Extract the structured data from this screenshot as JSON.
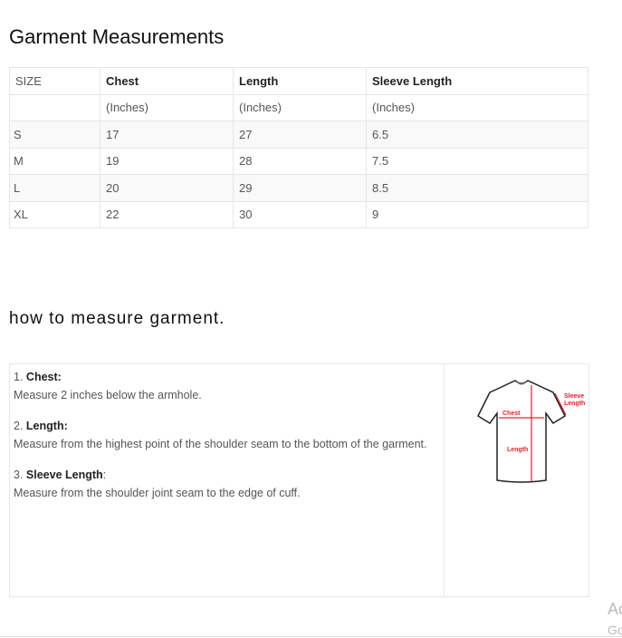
{
  "title": "Garment Measurements",
  "table": {
    "headers": [
      "SIZE",
      "Chest",
      "Length",
      "Sleeve Length"
    ],
    "rows": [
      [
        "",
        "(Inches)",
        "(Inches)",
        "(Inches)"
      ],
      [
        "S",
        "17",
        "27",
        "6.5"
      ],
      [
        "M",
        "19",
        "28",
        "7.5"
      ],
      [
        "L",
        "20",
        "29",
        "8.5"
      ],
      [
        "XL",
        "22",
        "30",
        "9"
      ]
    ]
  },
  "how": {
    "title": "how to measure garment.",
    "items": [
      {
        "num": "1.",
        "label": "Chest:",
        "text": "Measure 2 inches below the armhole."
      },
      {
        "num": "2.",
        "label": "Length:",
        "text": "Measure from the highest point of the shoulder seam to the bottom of the garment."
      },
      {
        "num": "3.",
        "label": "Sleeve Length",
        "suffix": ":",
        "text": "Measure from the shoulder joint seam to the edge of cuff."
      }
    ],
    "diagram": {
      "chest": "Chest",
      "length": "Length",
      "sleeve1": "Sleeve",
      "sleeve2": "Length",
      "accent": "#e8202a"
    }
  },
  "watermark": {
    "line1": "Ac",
    "line2": "Go"
  }
}
